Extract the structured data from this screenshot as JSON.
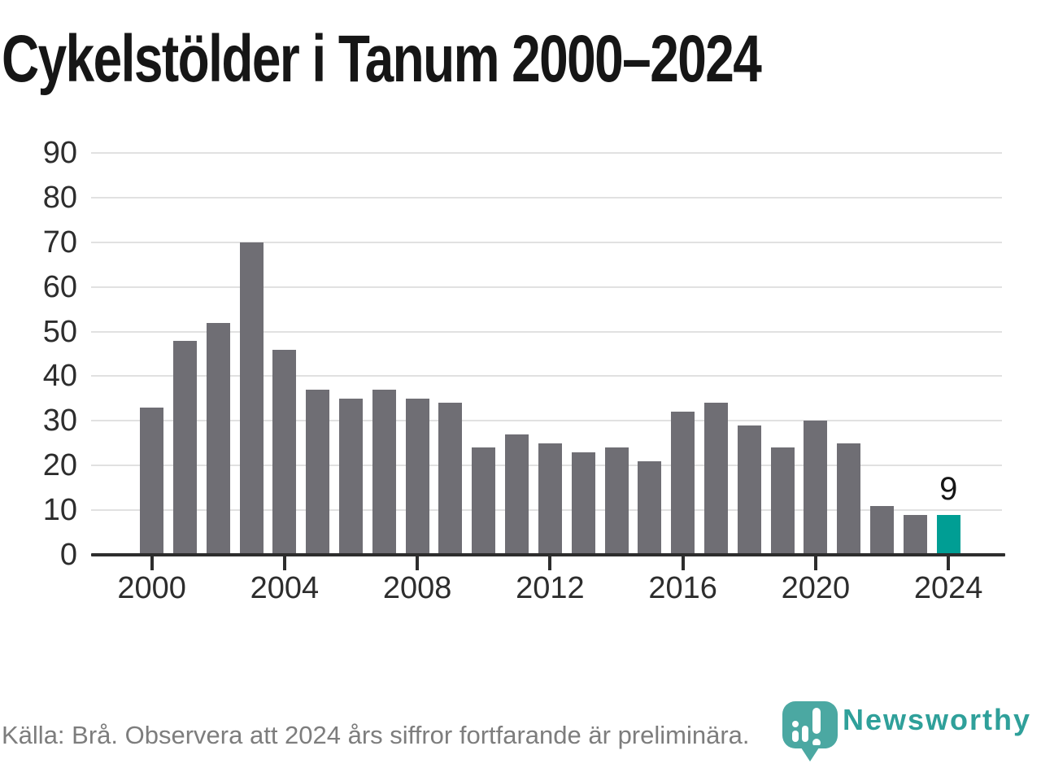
{
  "title": "Cykelstölder i Tanum 2000–2024",
  "chart_data": {
    "type": "bar",
    "title": "Cykelstölder i Tanum 2000–2024",
    "categories": [
      2000,
      2001,
      2002,
      2003,
      2004,
      2005,
      2006,
      2007,
      2008,
      2009,
      2010,
      2011,
      2012,
      2013,
      2014,
      2015,
      2016,
      2017,
      2018,
      2019,
      2020,
      2021,
      2022,
      2023,
      2024
    ],
    "values": [
      33,
      48,
      52,
      70,
      46,
      37,
      35,
      37,
      35,
      34,
      24,
      27,
      25,
      23,
      24,
      21,
      32,
      34,
      29,
      24,
      30,
      25,
      11,
      9,
      9
    ],
    "xlabel": "",
    "ylabel": "",
    "ylim": [
      0,
      90
    ],
    "ytick_interval": 10,
    "yticks": [
      0,
      10,
      20,
      30,
      40,
      50,
      60,
      70,
      80,
      90
    ],
    "xticks": [
      2000,
      2004,
      2008,
      2012,
      2016,
      2020,
      2024
    ],
    "grid": true,
    "legend": "none",
    "bar_color": "#6F6E74",
    "highlight_index": 24,
    "highlight_color": "#009E94",
    "highlight_value_label": "9"
  },
  "footer": {
    "source_note": "Källa: Brå. Observera att 2024 års siffror fortfarande är preliminära."
  },
  "branding": {
    "logo_icon": "newsworthy-pin-icon",
    "logo_text": "Newsworthy",
    "teal": "#2FA09A"
  }
}
